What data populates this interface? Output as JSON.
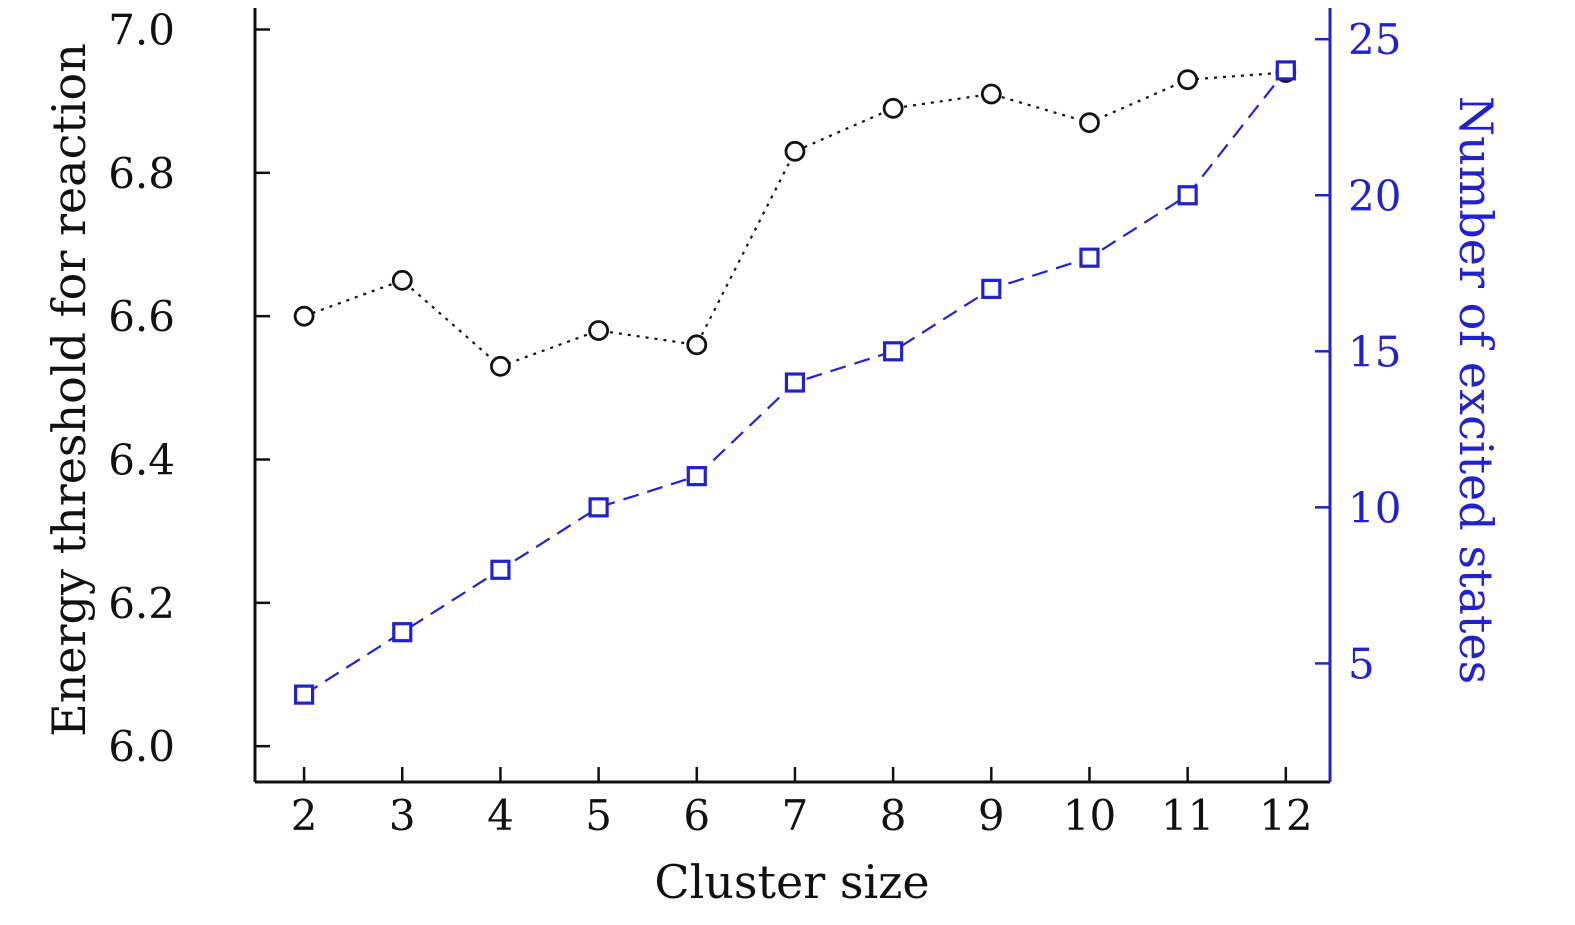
{
  "figure": {
    "background": "#ffffff"
  },
  "chart_data": {
    "type": "line",
    "title": "",
    "grid": false,
    "legend": "none",
    "x": [
      2,
      3,
      4,
      5,
      6,
      7,
      8,
      9,
      10,
      11,
      12
    ],
    "x_axis": {
      "label": "Cluster size",
      "tick_values": [
        2,
        3,
        4,
        5,
        6,
        7,
        8,
        9,
        10,
        11,
        12
      ],
      "tick_labels": [
        "2",
        "3",
        "4",
        "5",
        "6",
        "7",
        "8",
        "9",
        "10",
        "11",
        "12"
      ],
      "range": [
        1.5,
        12.45
      ],
      "color": "#111111"
    },
    "left_axis": {
      "label": "Energy threshold for reaction",
      "tick_values": [
        6.0,
        6.2,
        6.4,
        6.6,
        6.8,
        7.0
      ],
      "tick_labels": [
        "6.0",
        "6.2",
        "6.4",
        "6.6",
        "6.8",
        "7.0"
      ],
      "range": [
        5.95,
        7.03
      ],
      "color": "#111111"
    },
    "right_axis": {
      "label": "Number of excited states",
      "tick_values": [
        5,
        10,
        15,
        20,
        25
      ],
      "tick_labels": [
        "5",
        "10",
        "15",
        "20",
        "25"
      ],
      "range": [
        1.2,
        26.0
      ],
      "color": "#2222cc"
    },
    "series": [
      {
        "name": "Energy threshold for reaction",
        "axis": "left",
        "marker": "circle",
        "line_style": "dotted",
        "color": "#111111",
        "values": [
          6.6,
          6.65,
          6.53,
          6.58,
          6.56,
          6.83,
          6.89,
          6.91,
          6.87,
          6.93,
          6.94
        ]
      },
      {
        "name": "Number of excited states",
        "axis": "right",
        "marker": "square",
        "line_style": "dashed",
        "color": "#2222cc",
        "values": [
          4,
          6,
          8,
          10,
          11,
          14,
          15,
          17,
          18,
          20,
          24
        ]
      }
    ]
  }
}
